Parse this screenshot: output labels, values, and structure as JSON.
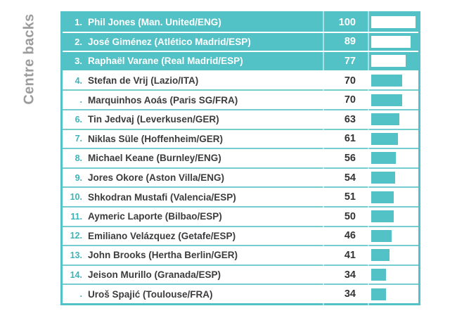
{
  "section_label": "Centre backs",
  "colors": {
    "accent": "#53c2c6",
    "rank_text": "#3bb5ba",
    "name_text": "#3c3c3c",
    "side_label_gray": "#9c9c9c",
    "row_separator": "#74cdd0"
  },
  "chart_data": {
    "type": "bar",
    "orientation": "horizontal",
    "title": "Centre backs",
    "xlim": [
      0,
      100
    ],
    "highlighted_top_rows": 3,
    "bar_color": "#53c2c6",
    "highlight_bar_color": "#ffffff",
    "ranks": [
      "1.",
      "2.",
      "3.",
      "4.",
      ".",
      "6.",
      "7.",
      "8.",
      "9.",
      "10.",
      "11.",
      "12.",
      "13.",
      "14.",
      "."
    ],
    "categories": [
      "Phil Jones (Man. United/ENG)",
      "José Giménez (Atlético Madrid/ESP)",
      "Raphaël Varane (Real Madrid/ESP)",
      "Stefan de Vrij (Lazio/ITA)",
      "Marquinhos Aoás (Paris SG/FRA)",
      "Tin Jedvaj (Leverkusen/GER)",
      "Niklas Süle (Hoffenheim/GER)",
      "Michael Keane (Burnley/ENG)",
      "Jores Okore (Aston Villa/ENG)",
      "Shkodran Mustafi (Valencia/ESP)",
      "Aymeric Laporte (Bilbao/ESP)",
      "Emiliano Velázquez (Getafe/ESP)",
      "John Brooks (Hertha Berlin/GER)",
      "Jeison Murillo (Granada/ESP)",
      "Uroš Spajić (Toulouse/FRA)"
    ],
    "values": [
      100,
      89,
      77,
      70,
      70,
      63,
      61,
      56,
      54,
      51,
      50,
      46,
      41,
      34,
      34
    ]
  }
}
